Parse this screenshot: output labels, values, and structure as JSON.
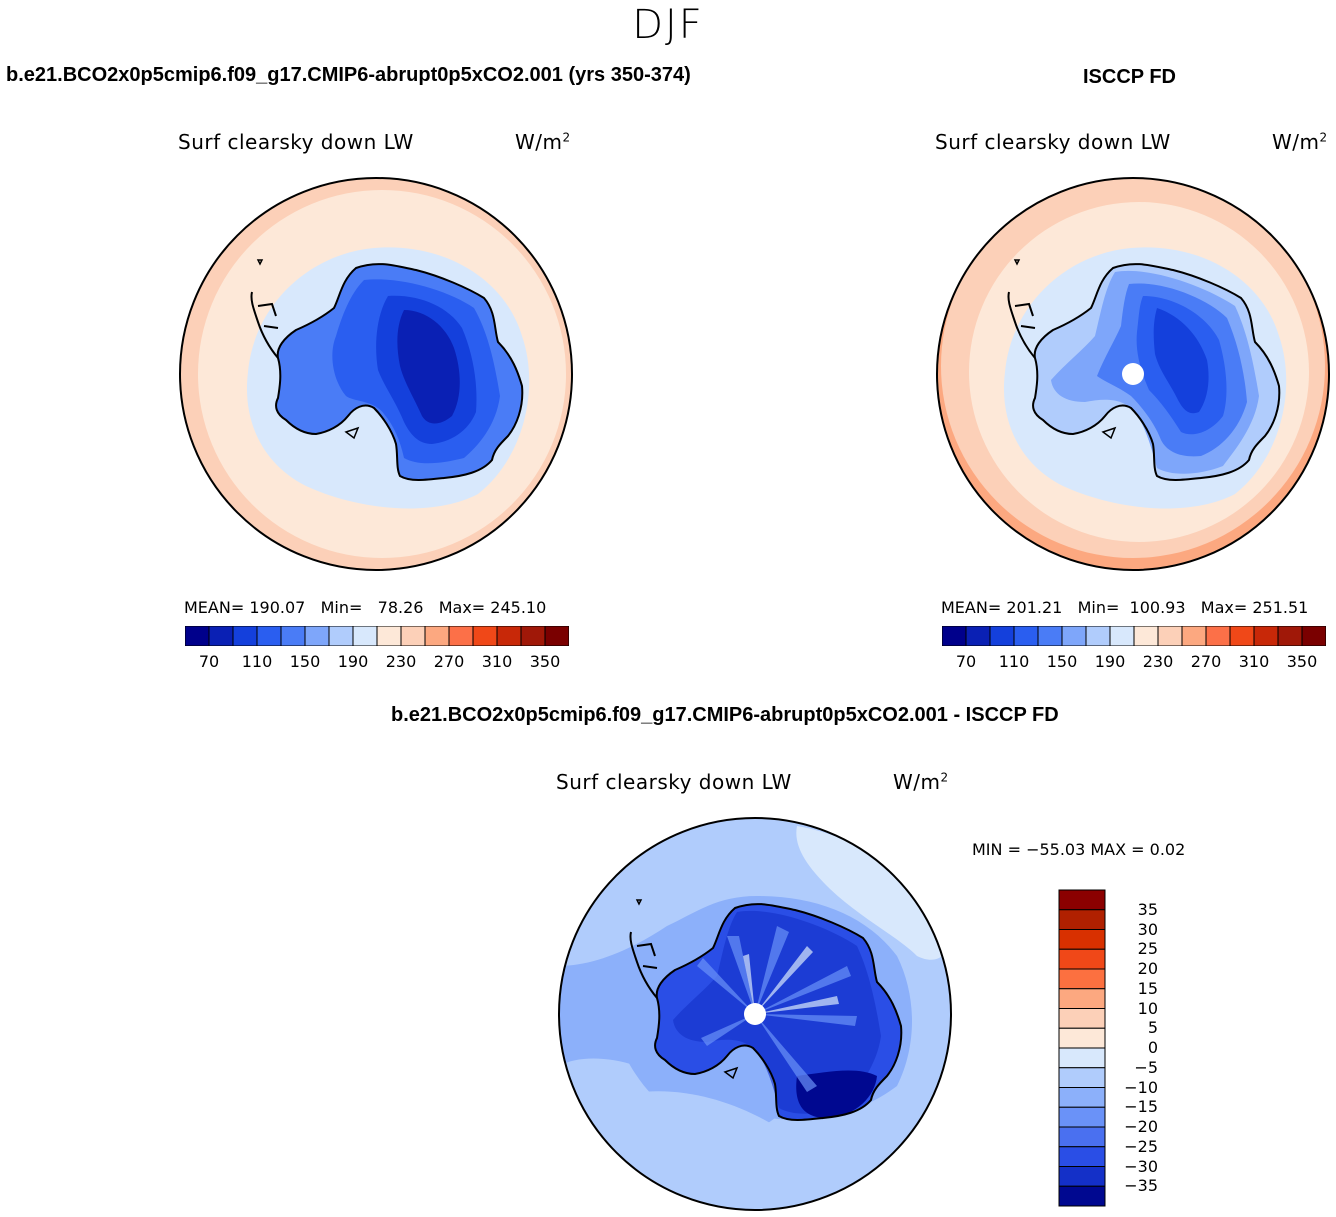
{
  "season": "DJF",
  "panels": {
    "model": {
      "case_title": "b.e21.BCO2x0p5cmip6.f09_g17.CMIP6-abrupt0p5xCO2.001 (yrs 350-374)",
      "variable": "Surf clearsky down LW",
      "units": "W/m",
      "units_exp": "2",
      "mean_label": "MEAN=",
      "mean": "190.07",
      "min_label": "Min=",
      "min": "78.26",
      "max_label": "Max=",
      "max": "245.10"
    },
    "obs": {
      "case_title": "ISCCP FD",
      "variable": "Surf clearsky down LW",
      "units": "W/m",
      "units_exp": "2",
      "mean_label": "MEAN=",
      "mean": "201.21",
      "min_label": "Min=",
      "min": "100.93",
      "max_label": "Max=",
      "max": "251.51"
    },
    "diff": {
      "case_title": "b.e21.BCO2x0p5cmip6.f09_g17.CMIP6-abrupt0p5xCO2.001 - ISCCP FD",
      "variable": "Surf clearsky down LW",
      "units": "W/m",
      "units_exp": "2",
      "minmax_text": "MIN = −55.03 MAX =    0.02"
    }
  },
  "chart_data": [
    {
      "type": "heatmap",
      "projection": "south-polar-stereographic",
      "title": "Surf clearsky down LW",
      "units": "W/m2",
      "stats": {
        "mean": 190.07,
        "min": 78.26,
        "max": 245.1
      },
      "levels": [
        70,
        90,
        110,
        130,
        150,
        170,
        190,
        210,
        230,
        250,
        270,
        290,
        310,
        330,
        350
      ],
      "tick_labels": [
        "70",
        "110",
        "150",
        "190",
        "230",
        "270",
        "310",
        "350"
      ],
      "colors": [
        "#00008b",
        "#0a20b4",
        "#1440dc",
        "#2a5ef0",
        "#4a7cf6",
        "#7ea6fa",
        "#b0ccfc",
        "#d8e8fc",
        "#fde8d8",
        "#fcd0b8",
        "#fca880",
        "#fc7048",
        "#f04818",
        "#c82808",
        "#a01808",
        "#7a0000"
      ]
    },
    {
      "type": "heatmap",
      "projection": "south-polar-stereographic",
      "title": "Surf clearsky down LW",
      "units": "W/m2",
      "stats": {
        "mean": 201.21,
        "min": 100.93,
        "max": 251.51
      },
      "levels": [
        70,
        90,
        110,
        130,
        150,
        170,
        190,
        210,
        230,
        250,
        270,
        290,
        310,
        330,
        350
      ],
      "tick_labels": [
        "70",
        "110",
        "150",
        "190",
        "230",
        "270",
        "310",
        "350"
      ],
      "colors": [
        "#00008b",
        "#0a20b4",
        "#1440dc",
        "#2a5ef0",
        "#4a7cf6",
        "#7ea6fa",
        "#b0ccfc",
        "#d8e8fc",
        "#fde8d8",
        "#fcd0b8",
        "#fca880",
        "#fc7048",
        "#f04818",
        "#c82808",
        "#a01808",
        "#7a0000"
      ]
    },
    {
      "type": "heatmap",
      "projection": "south-polar-stereographic",
      "title": "Surf clearsky down LW",
      "units": "W/m2",
      "stats": {
        "min": -55.03,
        "max": 0.02
      },
      "levels": [
        -35,
        -30,
        -25,
        -20,
        -15,
        -10,
        -5,
        0,
        5,
        10,
        15,
        20,
        25,
        30,
        35
      ],
      "tick_labels": [
        "35",
        "30",
        "25",
        "20",
        "15",
        "10",
        "5",
        "0",
        "−5",
        "−10",
        "−15",
        "−20",
        "−25",
        "−30",
        "−35"
      ],
      "colors": [
        "#8b0000",
        "#b02000",
        "#d83000",
        "#f04818",
        "#fc7040",
        "#fca880",
        "#fcd0b8",
        "#fde8d8",
        "#d8e8fc",
        "#b0ccfc",
        "#8cb0fa",
        "#6a92f8",
        "#4a70f0",
        "#2a4ee6",
        "#1430c8",
        "#000890"
      ]
    }
  ]
}
